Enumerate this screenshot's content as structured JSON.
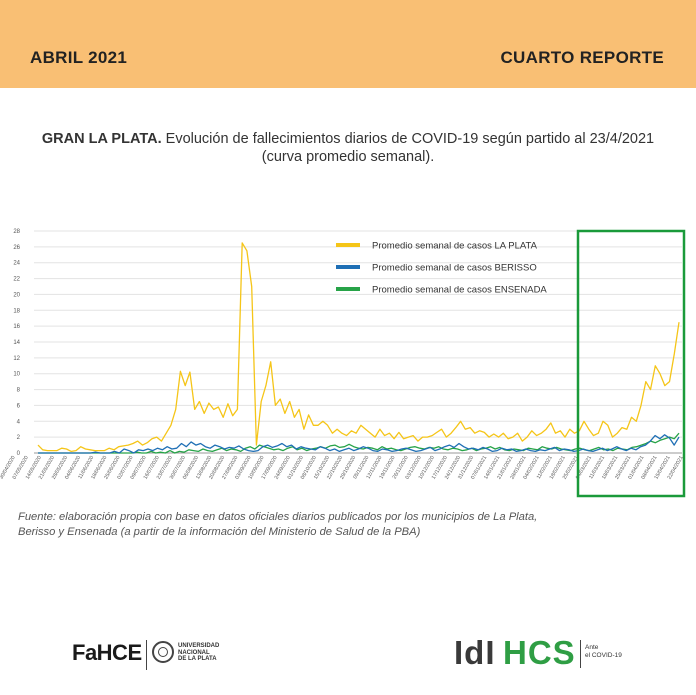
{
  "header": {
    "left": "ABRIL 2021",
    "right": "CUARTO REPORTE",
    "band_color": "#f9bf74"
  },
  "title": {
    "bold": "GRAN LA PLATA.",
    "rest": " Evolución de fallecimientos diarios de COVID-19 según partido al 23/4/2021",
    "line2": "(curva promedio semanal)."
  },
  "chart_data": {
    "type": "line",
    "ylim": [
      0,
      28
    ],
    "yticks": [
      0,
      2,
      4,
      6,
      8,
      10,
      12,
      14,
      16,
      18,
      20,
      22,
      24,
      26,
      28
    ],
    "grid": true,
    "legend_position": "top-right",
    "x_labels": [
      "30/04/2020",
      "07/05/2020",
      "14/05/2020",
      "21/05/2020",
      "28/05/2020",
      "04/06/2020",
      "11/06/2020",
      "18/06/2020",
      "25/06/2020",
      "02/07/2020",
      "09/07/2020",
      "16/07/2020",
      "23/07/2020",
      "30/07/2020",
      "06/08/2020",
      "13/08/2020",
      "20/08/2020",
      "27/08/2020",
      "03/09/2020",
      "10/09/2020",
      "17/09/2020",
      "24/09/2020",
      "01/10/2020",
      "08/10/2020",
      "15/10/2020",
      "22/10/2020",
      "29/10/2020",
      "05/11/2020",
      "12/11/2020",
      "19/11/2020",
      "26/11/2020",
      "03/12/2020",
      "10/12/2020",
      "17/12/2020",
      "24/12/2020",
      "31/12/2020",
      "07/01/2021",
      "14/01/2021",
      "21/01/2021",
      "28/01/2021",
      "04/02/2021",
      "11/02/2021",
      "18/02/2021",
      "25/02/2021",
      "04/03/2021",
      "11/03/2021",
      "18/03/2021",
      "25/03/2021",
      "01/04/2021",
      "08/04/2021",
      "15/04/2021",
      "22/04/2021"
    ],
    "series": [
      {
        "name": "Promedio semanal de casos LA PLATA",
        "color": "#f5c518",
        "values": [
          1.0,
          0.4,
          0.3,
          0.3,
          0.3,
          0.6,
          0.5,
          0.2,
          0.3,
          0.8,
          0.5,
          0.4,
          0.3,
          0.3,
          0.3,
          0.6,
          0.4,
          0.8,
          0.9,
          1.0,
          1.2,
          1.5,
          1.0,
          1.3,
          1.8,
          2.0,
          1.5,
          2.5,
          3.5,
          5.5,
          10.3,
          8.5,
          10.2,
          5.5,
          6.5,
          5.0,
          6.3,
          5.5,
          5.8,
          4.5,
          6.2,
          4.7,
          5.5,
          26.5,
          25.5,
          21.0,
          1.0,
          6.5,
          8.5,
          11.5,
          6.0,
          6.8,
          5.0,
          6.5,
          4.5,
          5.5,
          3.0,
          4.8,
          3.5,
          3.5,
          4.0,
          3.5,
          2.5,
          3.0,
          2.5,
          2.2,
          2.8,
          2.5,
          3.5,
          3.0,
          2.5,
          2.0,
          3.0,
          2.2,
          2.5,
          1.8,
          2.6,
          1.8,
          2.0,
          2.2,
          1.5,
          2.0,
          2.0,
          2.2,
          2.6,
          3.0,
          2.0,
          2.5,
          3.2,
          4.0,
          3.0,
          3.2,
          2.5,
          2.8,
          2.6,
          2.0,
          2.4,
          2.0,
          2.5,
          1.8,
          2.0,
          2.5,
          1.5,
          2.0,
          2.8,
          2.2,
          2.5,
          3.0,
          3.8,
          2.5,
          2.8,
          2.0,
          3.0,
          2.5,
          2.8,
          4.0,
          3.0,
          2.2,
          2.5,
          4.0,
          3.5,
          2.0,
          2.5,
          3.2,
          3.0,
          4.5,
          4.0,
          6.0,
          9.0,
          8.0,
          11.0,
          10.0,
          8.5,
          9.0,
          12.5,
          16.5
        ]
      },
      {
        "name": "Promedio semanal de casos BERISSO",
        "color": "#1f6fb5",
        "values": [
          0.0,
          0.0,
          0.0,
          0.0,
          0.0,
          0.0,
          0.0,
          0.0,
          0.0,
          0.0,
          0.0,
          0.0,
          0.1,
          0.0,
          0.0,
          0.0,
          0.2,
          0.0,
          0.5,
          0.3,
          0.0,
          0.4,
          0.3,
          0.5,
          0.3,
          0.6,
          0.4,
          0.8,
          0.5,
          0.6,
          1.2,
          0.8,
          1.4,
          1.0,
          1.2,
          0.8,
          0.6,
          1.0,
          0.8,
          0.5,
          0.7,
          0.6,
          0.9,
          0.5,
          0.3,
          0.2,
          0.3,
          0.8,
          1.0,
          0.7,
          0.9,
          1.2,
          0.8,
          1.0,
          0.5,
          0.8,
          0.6,
          0.5,
          0.4,
          0.8,
          0.6,
          0.3,
          0.5,
          0.2,
          0.4,
          0.6,
          0.3,
          0.5,
          0.8,
          0.6,
          0.3,
          0.2,
          0.5,
          0.4,
          0.2,
          0.3,
          0.5,
          0.6,
          0.4,
          0.2,
          0.3,
          0.5,
          0.7,
          0.3,
          0.5,
          0.8,
          1.0,
          0.7,
          1.2,
          0.8,
          0.5,
          0.6,
          0.4,
          0.7,
          0.5,
          0.2,
          0.3,
          0.6,
          0.4,
          0.5,
          0.2,
          0.3,
          0.5,
          0.3,
          0.2,
          0.4,
          0.3,
          0.5,
          0.7,
          0.3,
          0.5,
          0.4,
          0.2,
          0.3,
          0.5,
          0.3,
          0.2,
          0.4,
          0.6,
          0.3,
          0.5,
          0.8,
          0.5,
          0.3,
          0.6,
          0.4,
          0.8,
          1.0,
          1.5,
          2.2,
          1.8,
          2.3,
          1.9,
          1.0,
          2.0
        ]
      },
      {
        "name": "Promedio semanal de casos ENSENADA",
        "color": "#27a348",
        "values": [
          0.0,
          0.0,
          0.0,
          0.0,
          0.0,
          0.0,
          0.0,
          0.0,
          0.0,
          0.0,
          0.0,
          0.0,
          0.0,
          0.0,
          0.0,
          0.0,
          0.0,
          0.0,
          0.0,
          0.0,
          0.0,
          0.1,
          0.0,
          0.0,
          0.2,
          0.0,
          0.1,
          0.0,
          0.3,
          0.0,
          0.2,
          0.1,
          0.4,
          0.3,
          0.2,
          0.5,
          0.3,
          0.2,
          0.4,
          0.6,
          0.3,
          0.5,
          0.4,
          0.2,
          0.6,
          0.8,
          0.5,
          1.0,
          0.8,
          0.6,
          0.4,
          0.5,
          0.3,
          0.6,
          0.8,
          0.4,
          0.6,
          0.3,
          0.5,
          0.6,
          0.8,
          0.6,
          0.9,
          1.0,
          0.7,
          0.8,
          1.1,
          0.8,
          0.6,
          0.5,
          0.7,
          0.6,
          0.4,
          0.8,
          0.5,
          0.6,
          0.4,
          0.3,
          0.5,
          0.7,
          0.8,
          0.6,
          0.5,
          0.7,
          0.6,
          0.8,
          0.5,
          0.4,
          0.6,
          0.5,
          0.3,
          0.4,
          0.6,
          0.3,
          0.5,
          0.6,
          0.8,
          0.5,
          0.7,
          0.4,
          0.3,
          0.5,
          0.4,
          0.3,
          0.6,
          0.5,
          0.4,
          0.8,
          0.6,
          0.5,
          0.7,
          0.5,
          0.4,
          0.3,
          0.5,
          0.6,
          0.4,
          0.3,
          0.5,
          0.7,
          0.4,
          0.5,
          0.3,
          0.6,
          0.5,
          0.4,
          0.7,
          0.8,
          1.0,
          1.2,
          1.5,
          1.3,
          1.6,
          1.8,
          2.0,
          1.8,
          2.5
        ]
      }
    ]
  },
  "highlight_box": {
    "color": "#1a9a3a"
  },
  "source": {
    "line1": "Fuente: elaboración propia con base en datos oficiales diarios publicados por los municipios de La Plata,",
    "line2": "Berisso y Ensenada (a partir de la información del Ministerio de Salud de la PBA)"
  },
  "footer": {
    "fahce": "FaHCE",
    "unlp_line1": "UNIVERSIDAD",
    "unlp_line2": "NACIONAL",
    "unlp_line3": "DE LA PLATA",
    "idi": "IdI",
    "hcs": "HCS",
    "ante_line1": "Ante",
    "ante_line2": "el COVID-19"
  }
}
